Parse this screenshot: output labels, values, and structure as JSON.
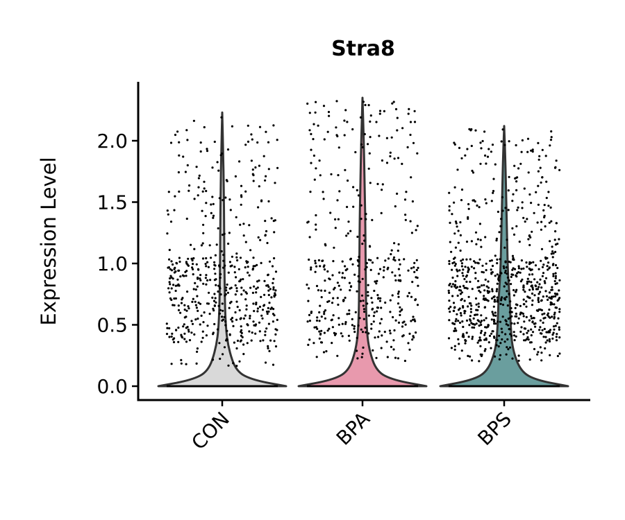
{
  "chart_data": {
    "type": "violin",
    "title": "Stra8",
    "xlabel": "",
    "ylabel": "Expression Level",
    "categories": [
      "CON",
      "BPA",
      "BPS"
    ],
    "ylim": [
      -0.1,
      2.45
    ],
    "yticks": [
      "0.0",
      "0.5",
      "1.0",
      "1.5",
      "2.0"
    ],
    "grid": false,
    "legend": "none",
    "series": [
      {
        "category": "CON",
        "color": "#d9d9d9",
        "max": 2.23,
        "density": [
          [
            0.0,
            1.0
          ],
          [
            0.05,
            0.48
          ],
          [
            0.12,
            0.22
          ],
          [
            0.3,
            0.1
          ],
          [
            0.5,
            0.05
          ],
          [
            0.9,
            0.035
          ],
          [
            1.3,
            0.03
          ],
          [
            1.6,
            0.025
          ],
          [
            1.9,
            0.015
          ],
          [
            2.23,
            0.0
          ]
        ],
        "jitter_points": 520,
        "jitter_range": [
          0.15,
          2.2
        ]
      },
      {
        "category": "BPA",
        "color": "#e899ad",
        "max": 2.35,
        "density": [
          [
            0.0,
            1.0
          ],
          [
            0.05,
            0.48
          ],
          [
            0.12,
            0.22
          ],
          [
            0.3,
            0.1
          ],
          [
            0.5,
            0.06
          ],
          [
            0.9,
            0.05
          ],
          [
            1.3,
            0.045
          ],
          [
            1.6,
            0.035
          ],
          [
            2.0,
            0.02
          ],
          [
            2.35,
            0.0
          ]
        ],
        "jitter_points": 420,
        "jitter_range": [
          0.2,
          2.35
        ]
      },
      {
        "category": "BPS",
        "color": "#6a9e9e",
        "max": 2.12,
        "density": [
          [
            0.0,
            1.0
          ],
          [
            0.05,
            0.5
          ],
          [
            0.12,
            0.26
          ],
          [
            0.3,
            0.13
          ],
          [
            0.5,
            0.1
          ],
          [
            0.7,
            0.09
          ],
          [
            0.9,
            0.06
          ],
          [
            1.2,
            0.045
          ],
          [
            1.6,
            0.03
          ],
          [
            1.9,
            0.015
          ],
          [
            2.12,
            0.0
          ]
        ],
        "jitter_points": 780,
        "jitter_range": [
          0.2,
          2.1
        ]
      }
    ]
  }
}
